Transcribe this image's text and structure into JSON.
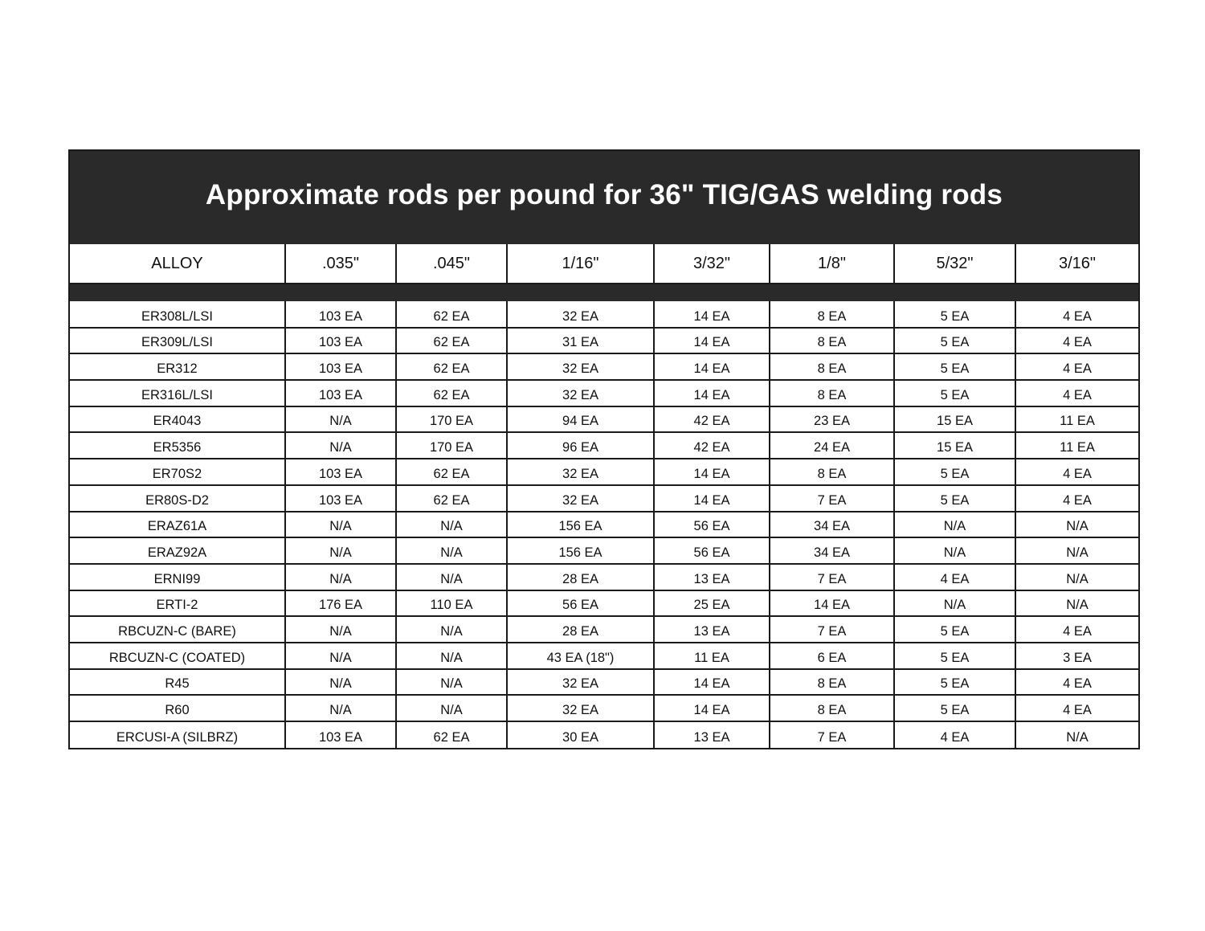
{
  "title": "Approximate rods per pound for 36\" TIG/GAS welding rods",
  "columns": [
    "ALLOY",
    ".035\"",
    ".045\"",
    "1/16\"",
    "3/32\"",
    "1/8\"",
    "5/32\"",
    "3/16\""
  ],
  "rows": [
    [
      "ER308L/LSI",
      "103 EA",
      "62 EA",
      "32 EA",
      "14 EA",
      "8 EA",
      "5 EA",
      "4 EA"
    ],
    [
      "ER309L/LSI",
      "103 EA",
      "62 EA",
      "31 EA",
      "14 EA",
      "8 EA",
      "5 EA",
      "4 EA"
    ],
    [
      "ER312",
      "103 EA",
      "62 EA",
      "32 EA",
      "14 EA",
      "8 EA",
      "5 EA",
      "4 EA"
    ],
    [
      "ER316L/LSI",
      "103 EA",
      "62 EA",
      "32 EA",
      "14 EA",
      "8 EA",
      "5 EA",
      "4 EA"
    ],
    [
      "ER4043",
      "N/A",
      "170 EA",
      "94 EA",
      "42 EA",
      "23 EA",
      "15 EA",
      "11 EA"
    ],
    [
      "ER5356",
      "N/A",
      "170 EA",
      "96 EA",
      "42 EA",
      "24 EA",
      "15 EA",
      "11 EA"
    ],
    [
      "ER70S2",
      "103 EA",
      "62 EA",
      "32 EA",
      "14 EA",
      "8 EA",
      "5 EA",
      "4 EA"
    ],
    [
      "ER80S-D2",
      "103 EA",
      "62 EA",
      "32 EA",
      "14 EA",
      "7 EA",
      "5 EA",
      "4 EA"
    ],
    [
      "ERAZ61A",
      "N/A",
      "N/A",
      "156 EA",
      "56 EA",
      "34 EA",
      "N/A",
      "N/A"
    ],
    [
      "ERAZ92A",
      "N/A",
      "N/A",
      "156 EA",
      "56 EA",
      "34 EA",
      "N/A",
      "N/A"
    ],
    [
      "ERNI99",
      "N/A",
      "N/A",
      "28 EA",
      "13 EA",
      "7 EA",
      "4 EA",
      "N/A"
    ],
    [
      "ERTI-2",
      "176 EA",
      "110 EA",
      "56 EA",
      "25 EA",
      "14 EA",
      "N/A",
      "N/A"
    ],
    [
      "RBCUZN-C (BARE)",
      "N/A",
      "N/A",
      "28 EA",
      "13 EA",
      "7 EA",
      "5 EA",
      "4 EA"
    ],
    [
      "RBCUZN-C (COATED)",
      "N/A",
      "N/A",
      "43 EA  (18\")",
      "11 EA",
      "6 EA",
      "5 EA",
      "3 EA"
    ],
    [
      "R45",
      "N/A",
      "N/A",
      "32 EA",
      "14 EA",
      "8 EA",
      "5 EA",
      "4 EA"
    ],
    [
      "R60",
      "N/A",
      "N/A",
      "32 EA",
      "14 EA",
      "8 EA",
      "5 EA",
      "4 EA"
    ],
    [
      "ERCUSI-A (SILBRZ)",
      "103 EA",
      "62 EA",
      "30 EA",
      "13 EA",
      "7 EA",
      "4 EA",
      "N/A"
    ]
  ],
  "colors": {
    "header_band": "#2a2a2a",
    "rule": "#1a1a1a",
    "title_text": "#ffffff"
  }
}
